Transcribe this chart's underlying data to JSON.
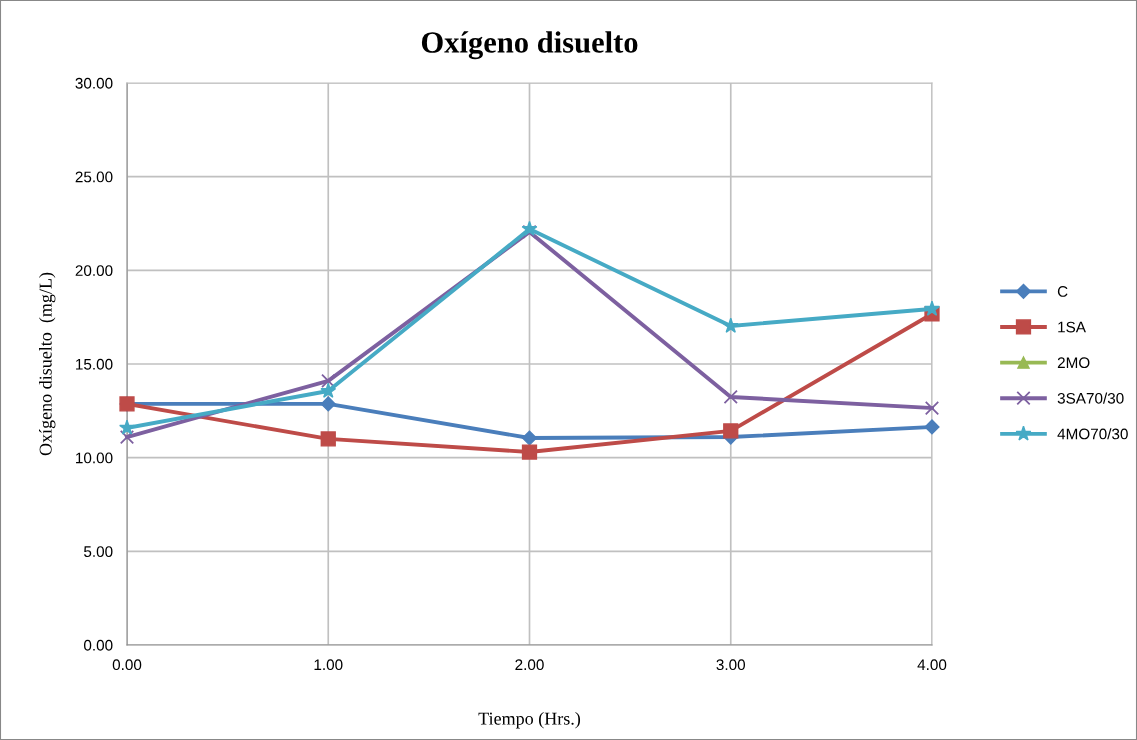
{
  "chart_data": {
    "type": "line",
    "title": "Oxígeno disuelto",
    "xlabel": "Tiempo (Hrs.)",
    "ylabel": "Oxígeno disuelto  (mg/L)",
    "x": [
      0,
      1,
      2,
      3,
      4
    ],
    "xlim": [
      0,
      4
    ],
    "xticks": [
      {
        "value": 0,
        "label": "0.00"
      },
      {
        "value": 1,
        "label": "1.00"
      },
      {
        "value": 2,
        "label": "2.00"
      },
      {
        "value": 3,
        "label": "3.00"
      },
      {
        "value": 4,
        "label": "4.00"
      }
    ],
    "ylim": [
      0,
      30
    ],
    "yticks": [
      {
        "value": 0,
        "label": "0.00"
      },
      {
        "value": 5,
        "label": "5.00"
      },
      {
        "value": 10,
        "label": "10.00"
      },
      {
        "value": 15,
        "label": "15.00"
      },
      {
        "value": 20,
        "label": "20.00"
      },
      {
        "value": 25,
        "label": "25.00"
      },
      {
        "value": 30,
        "label": "30.00"
      }
    ],
    "grid": true,
    "legend": "right",
    "series": [
      {
        "name": "C",
        "color": "#4a7ebb",
        "marker": "diamond",
        "values": [
          12.87,
          12.87,
          11.05,
          11.1,
          11.64
        ]
      },
      {
        "name": "1SA",
        "color": "#be4b48",
        "marker": "square",
        "values": [
          12.87,
          11.0,
          10.3,
          11.43,
          17.67
        ]
      },
      {
        "name": "2MO",
        "color": "#98b954",
        "marker": "triangle",
        "values": [
          null,
          null,
          null,
          null,
          null
        ]
      },
      {
        "name": "3SA70/30",
        "color": "#7d60a0",
        "marker": "cross",
        "values": [
          11.1,
          14.1,
          22.05,
          13.24,
          12.65
        ]
      },
      {
        "name": "4MO70/30",
        "color": "#46aac5",
        "marker": "star",
        "values": [
          11.59,
          13.56,
          22.2,
          17.03,
          17.94
        ]
      }
    ]
  }
}
